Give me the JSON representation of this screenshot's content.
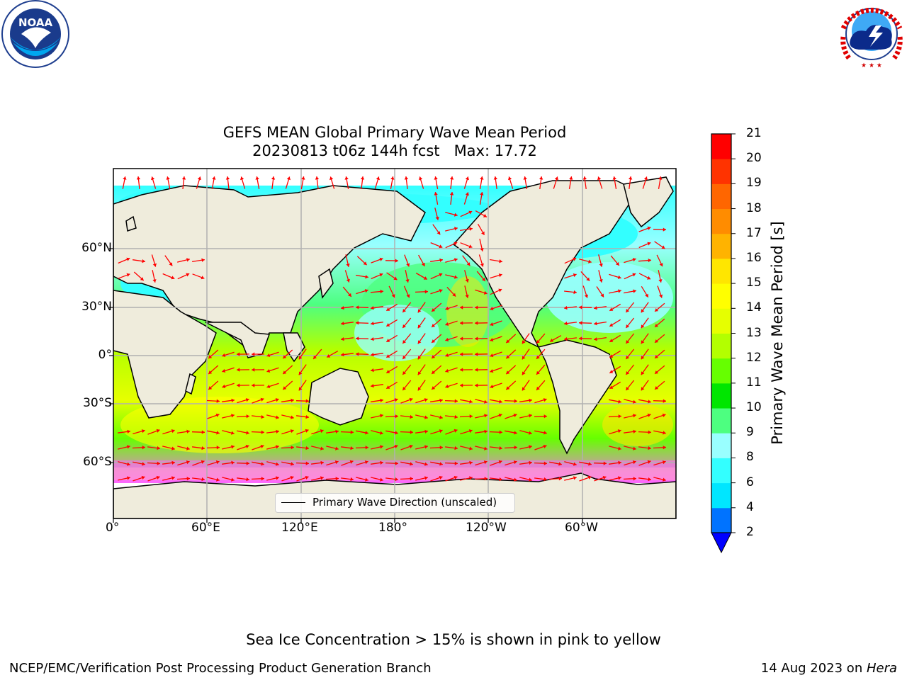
{
  "title_line1": "GEFS MEAN Global Primary Wave Mean Period",
  "title_line2": "20230813 t06z 144h fcst   Max: 17.72",
  "logos": {
    "left": {
      "name": "NOAA",
      "text": "NOAA",
      "ring_text": "NATIONAL OCEANIC AND ATMOSPHERIC ADMINISTRATION · U.S. DEPARTMENT OF COMMERCE"
    },
    "right": {
      "name": "National Weather Service",
      "ring_text": "NATIONAL WEATHER SERVICE"
    }
  },
  "map": {
    "lat_ticks": [
      "60°N",
      "30°N",
      "0°",
      "30°S",
      "60°S"
    ],
    "lon_ticks": [
      "0°",
      "60°E",
      "120°E",
      "180°",
      "120°W",
      "60°W"
    ],
    "legend_label": "Primary Wave Direction (unscaled)",
    "arrow_color": "#ff0000",
    "land_color": "#efecdc",
    "grid_color": "#b0b0b0"
  },
  "colorbar": {
    "title": "Primary Wave Mean Period [s]",
    "levels": [
      "2",
      "4",
      "6",
      "8",
      "9",
      "10",
      "11",
      "12",
      "13",
      "14",
      "15",
      "16",
      "17",
      "18",
      "19",
      "20",
      "21"
    ],
    "colors": [
      "#0073ff",
      "#00e6ff",
      "#33ffff",
      "#99ffff",
      "#4dff80",
      "#00e600",
      "#66ff00",
      "#b3ff00",
      "#e6ff00",
      "#ffff00",
      "#ffe600",
      "#ffb300",
      "#ff8c00",
      "#ff6600",
      "#ff3300",
      "#ff0000"
    ],
    "under_color": "#0000ff"
  },
  "footer": {
    "note": "Sea Ice Concentration > 15% is shown in pink to yellow",
    "left": "NCEP/EMC/Verification Post Processing Product Generation Branch",
    "right_prefix": "14 Aug 2023 on ",
    "right_host": "Hera"
  }
}
